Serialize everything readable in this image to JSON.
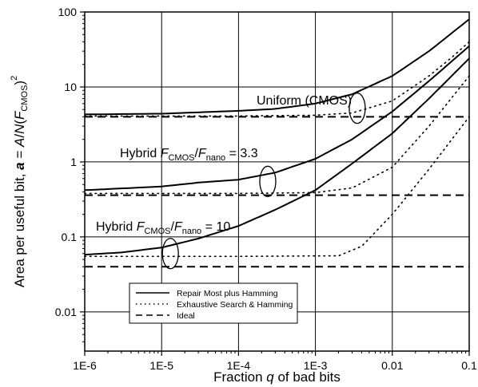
{
  "chart_data": {
    "type": "line",
    "x_scale": "log",
    "y_scale": "log",
    "xlim": [
      1e-06,
      0.1
    ],
    "ylim": [
      0.003,
      100
    ],
    "grid": true,
    "xlabel": "Fraction q of bad bits",
    "xlabel_parts": {
      "before": "Fraction ",
      "var": "q",
      "after": " of bad bits"
    },
    "ylabel": "Area per useful bit, a = A/N(F_CMOS)^2",
    "ylabel_parts": {
      "before": "Area per useful bit, ",
      "var_a": "a",
      "eq": " = ",
      "A": "A",
      "slash": "/",
      "N": "N",
      "open": "(",
      "F": "F",
      "sub": "CMOS",
      "close": ")",
      "sup": "2"
    },
    "x_ticks": [
      {
        "value": 1e-06,
        "label": "1E-6"
      },
      {
        "value": 1e-05,
        "label": "1E-5"
      },
      {
        "value": 0.0001,
        "label": "1E-4"
      },
      {
        "value": 0.001,
        "label": "1E-3"
      },
      {
        "value": 0.01,
        "label": "0.01"
      },
      {
        "value": 0.1,
        "label": "0.1"
      }
    ],
    "y_ticks": [
      {
        "value": 0.01,
        "label": "0.01"
      },
      {
        "value": 0.1,
        "label": "0.1"
      },
      {
        "value": 1,
        "label": "1"
      },
      {
        "value": 10,
        "label": "10"
      },
      {
        "value": 100,
        "label": "100"
      }
    ],
    "legend": {
      "position": "bottom-center",
      "entries": [
        {
          "label": "Repair Most plus Hamming",
          "style": "solid"
        },
        {
          "label": "Exhaustive Search & Hamming",
          "style": "dotted"
        },
        {
          "label": "Ideal",
          "style": "dashed"
        }
      ]
    },
    "annotations": [
      {
        "id": "uniform",
        "text": "Uniform (CMOS)"
      },
      {
        "id": "hybrid33",
        "pre": "Hybrid ",
        "F1": "F",
        "sub1": "CMOS",
        "slash": "/",
        "F2": "F",
        "sub2": "nano",
        "post": " = 3.3"
      },
      {
        "id": "hybrid10",
        "pre": "Hybrid ",
        "F1": "F",
        "sub1": "CMOS",
        "slash": "/",
        "F2": "F",
        "sub2": "nano",
        "post": " = 10"
      }
    ],
    "series": [
      {
        "group": "uniform",
        "style": "solid",
        "x": [
          1e-06,
          1e-05,
          0.0001,
          0.0003,
          0.001,
          0.003,
          0.01,
          0.03,
          0.1
        ],
        "y": [
          4.3,
          4.4,
          4.8,
          5.1,
          6.0,
          8.0,
          14,
          30,
          80
        ]
      },
      {
        "group": "uniform",
        "style": "dotted",
        "x": [
          1e-06,
          1e-05,
          0.0001,
          0.001,
          0.003,
          0.01,
          0.03,
          0.06,
          0.1
        ],
        "y": [
          4.1,
          4.1,
          4.1,
          4.2,
          4.5,
          6.5,
          14,
          25,
          40
        ]
      },
      {
        "group": "uniform",
        "style": "dashed",
        "x": [
          1e-06,
          0.1
        ],
        "y": [
          4.0,
          4.0
        ]
      },
      {
        "group": "hybrid33",
        "style": "solid",
        "x": [
          1e-06,
          1e-05,
          3e-05,
          0.0001,
          0.0003,
          0.001,
          0.003,
          0.01,
          0.03,
          0.1
        ],
        "y": [
          0.42,
          0.47,
          0.53,
          0.58,
          0.72,
          1.1,
          2.0,
          4.7,
          12,
          35
        ]
      },
      {
        "group": "hybrid33",
        "style": "dotted",
        "x": [
          1e-06,
          0.0001,
          0.001,
          0.003,
          0.01,
          0.03,
          0.1
        ],
        "y": [
          0.38,
          0.38,
          0.39,
          0.45,
          0.85,
          3.0,
          14
        ]
      },
      {
        "group": "hybrid33",
        "style": "dashed",
        "x": [
          1e-06,
          0.1
        ],
        "y": [
          0.36,
          0.36
        ]
      },
      {
        "group": "hybrid10",
        "style": "solid",
        "x": [
          1e-06,
          3e-06,
          1e-05,
          3e-05,
          0.0001,
          0.0003,
          0.001,
          0.003,
          0.01,
          0.03,
          0.1
        ],
        "y": [
          0.058,
          0.062,
          0.072,
          0.095,
          0.14,
          0.23,
          0.42,
          0.95,
          2.4,
          7.0,
          24
        ]
      },
      {
        "group": "hybrid10",
        "style": "dotted",
        "x": [
          1e-06,
          0.0001,
          0.002,
          0.004,
          0.01,
          0.03,
          0.1
        ],
        "y": [
          0.055,
          0.055,
          0.056,
          0.075,
          0.2,
          0.8,
          4.0
        ]
      },
      {
        "group": "hybrid10",
        "style": "dashed",
        "x": [
          1e-06,
          0.1
        ],
        "y": [
          0.04,
          0.04
        ]
      }
    ],
    "group_markers": [
      {
        "group": "uniform",
        "x": 0.0035,
        "y": 5.2
      },
      {
        "group": "hybrid33",
        "x": 0.00024,
        "y": 0.55
      },
      {
        "group": "hybrid10",
        "x": 1.3e-05,
        "y": 0.06
      }
    ]
  }
}
